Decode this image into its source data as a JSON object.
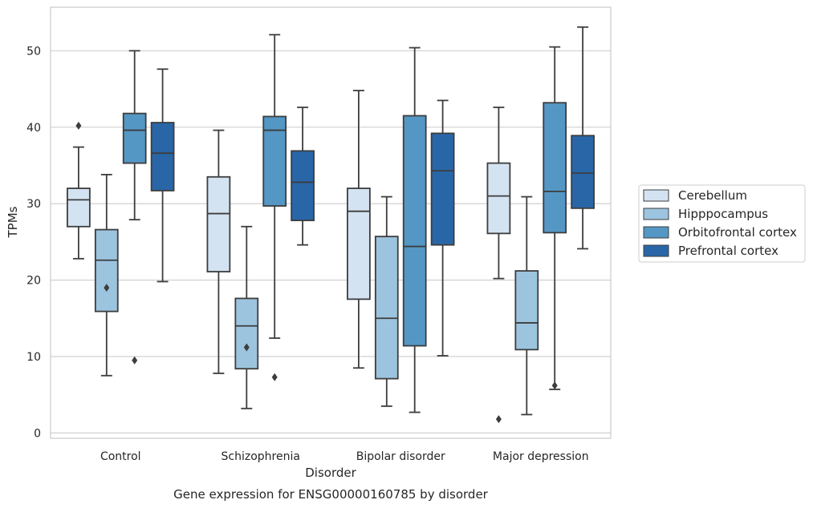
{
  "chart_data": {
    "type": "box",
    "title": "Gene expression for ENSG00000160785 by disorder",
    "xlabel": "Disorder",
    "ylabel": "TPMs",
    "ylim": [
      -0.7,
      55.7
    ],
    "yticks": [
      0,
      10,
      20,
      30,
      40,
      50
    ],
    "grid": "horizontal",
    "legend_position": "outside-right",
    "categories": [
      "Control",
      "Schizophrenia",
      "Bipolar disorder",
      "Major depression"
    ],
    "series": [
      {
        "name": "Cerebellum",
        "color": "#d4e3f2",
        "boxes": [
          {
            "whislo": 22.8,
            "q1": 27.0,
            "med": 30.5,
            "q3": 32.0,
            "whishi": 37.4,
            "fliers": [
              40.2
            ]
          },
          {
            "whislo": 7.8,
            "q1": 21.1,
            "med": 28.7,
            "q3": 33.5,
            "whishi": 39.6,
            "fliers": []
          },
          {
            "whislo": 8.5,
            "q1": 17.5,
            "med": 29.0,
            "q3": 32.0,
            "whishi": 44.8,
            "fliers": []
          },
          {
            "whislo": 20.2,
            "q1": 26.1,
            "med": 31.0,
            "q3": 35.3,
            "whishi": 42.6,
            "fliers": [
              1.8
            ]
          }
        ]
      },
      {
        "name": "Hipppocampus",
        "color": "#9cc4df",
        "boxes": [
          {
            "whislo": 7.5,
            "q1": 15.9,
            "med": 22.6,
            "q3": 26.6,
            "whishi": 33.8,
            "fliers": [
              19.0
            ]
          },
          {
            "whislo": 3.2,
            "q1": 8.4,
            "med": 14.0,
            "q3": 17.6,
            "whishi": 27.0,
            "fliers": [
              11.2
            ]
          },
          {
            "whislo": 3.5,
            "q1": 7.1,
            "med": 15.0,
            "q3": 25.7,
            "whishi": 30.9,
            "fliers": []
          },
          {
            "whislo": 2.4,
            "q1": 10.9,
            "med": 14.4,
            "q3": 21.2,
            "whishi": 30.9,
            "fliers": []
          }
        ]
      },
      {
        "name": "Orbitofrontal cortex",
        "color": "#5497c5",
        "boxes": [
          {
            "whislo": 27.9,
            "q1": 35.3,
            "med": 39.6,
            "q3": 41.8,
            "whishi": 50.0,
            "fliers": [
              9.5
            ]
          },
          {
            "whislo": 12.4,
            "q1": 29.7,
            "med": 39.6,
            "q3": 41.4,
            "whishi": 52.1,
            "fliers": [
              7.3
            ]
          },
          {
            "whislo": 2.7,
            "q1": 11.4,
            "med": 24.4,
            "q3": 41.5,
            "whishi": 50.4,
            "fliers": []
          },
          {
            "whislo": 5.7,
            "q1": 26.2,
            "med": 31.6,
            "q3": 43.2,
            "whishi": 50.5,
            "fliers": [
              6.2
            ]
          }
        ]
      },
      {
        "name": "Prefrontal cortex",
        "color": "#2966a8",
        "boxes": [
          {
            "whislo": 19.8,
            "q1": 31.7,
            "med": 36.6,
            "q3": 40.6,
            "whishi": 47.6,
            "fliers": []
          },
          {
            "whislo": 24.6,
            "q1": 27.8,
            "med": 32.8,
            "q3": 36.9,
            "whishi": 42.6,
            "fliers": []
          },
          {
            "whislo": 10.1,
            "q1": 24.6,
            "med": 34.3,
            "q3": 39.2,
            "whishi": 43.5,
            "fliers": []
          },
          {
            "whislo": 24.1,
            "q1": 29.4,
            "med": 34.0,
            "q3": 38.9,
            "whishi": 53.1,
            "fliers": []
          }
        ]
      }
    ]
  }
}
